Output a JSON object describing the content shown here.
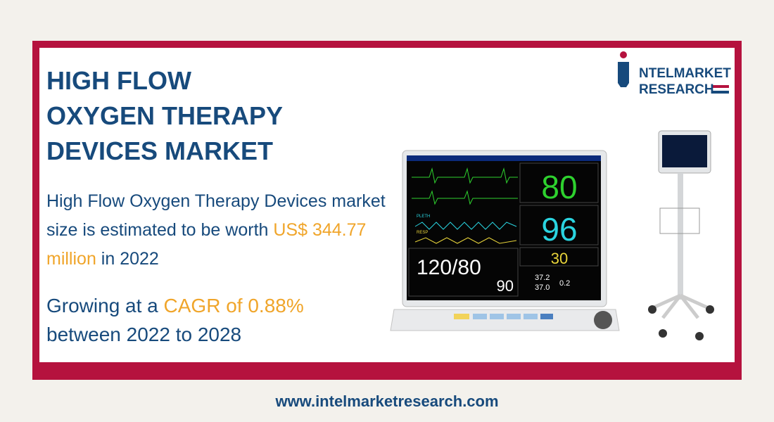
{
  "header": {
    "title_lines": [
      "HIGH FLOW",
      "OXYGEN THERAPY",
      "DEVICES MARKET"
    ]
  },
  "logo": {
    "line1": "NTELMARKET",
    "line2": "RESEARCH"
  },
  "summary": {
    "parts": [
      "High Flow Oxygen Therapy Devices market size is estimated to be worth ",
      "US$ 344.77 million",
      " in 2022"
    ]
  },
  "growth": {
    "parts": [
      "Growing at a ",
      "CAGR of 0.88%",
      " between 2022 to 2028"
    ]
  },
  "monitor": {
    "heart_rate": "80",
    "spo2": "96",
    "resp": "30",
    "nibp": "120/80",
    "nibp_mean": "90",
    "temp1": "37.2",
    "temp2": "37.0",
    "temp_diff": "0.2",
    "pleth_label": "PLETH",
    "resp_label": "RESP"
  },
  "footer": {
    "url": "www.intelmarketresearch.com"
  }
}
